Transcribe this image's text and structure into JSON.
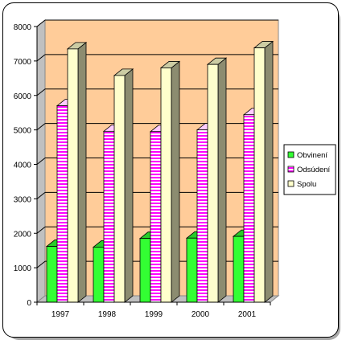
{
  "chart_data": {
    "type": "bar",
    "style": "3d-clustered-column",
    "categories": [
      "1997",
      "1998",
      "1999",
      "2000",
      "2001"
    ],
    "series": [
      {
        "name": "Obvinení",
        "values": [
          1620,
          1600,
          1850,
          1860,
          1910
        ],
        "color": "#33ff33",
        "fill": "solid"
      },
      {
        "name": "Odsúdení",
        "values": [
          5700,
          4960,
          4950,
          5000,
          5440
        ],
        "color": "#ff00ff",
        "fill": "horizontal-stripes"
      },
      {
        "name": "Spolu",
        "values": [
          7350,
          6580,
          6800,
          6900,
          7380
        ],
        "color": "#ffffcc",
        "fill": "solid"
      }
    ],
    "title": "",
    "xlabel": "",
    "ylabel": "",
    "ylim": [
      0,
      8000
    ],
    "yticks": [
      "0",
      "1000",
      "2000",
      "3000",
      "4000",
      "5000",
      "6000",
      "7000",
      "8000"
    ],
    "grid": true,
    "legend_position": "right",
    "plot_background": "#ffcc99"
  }
}
